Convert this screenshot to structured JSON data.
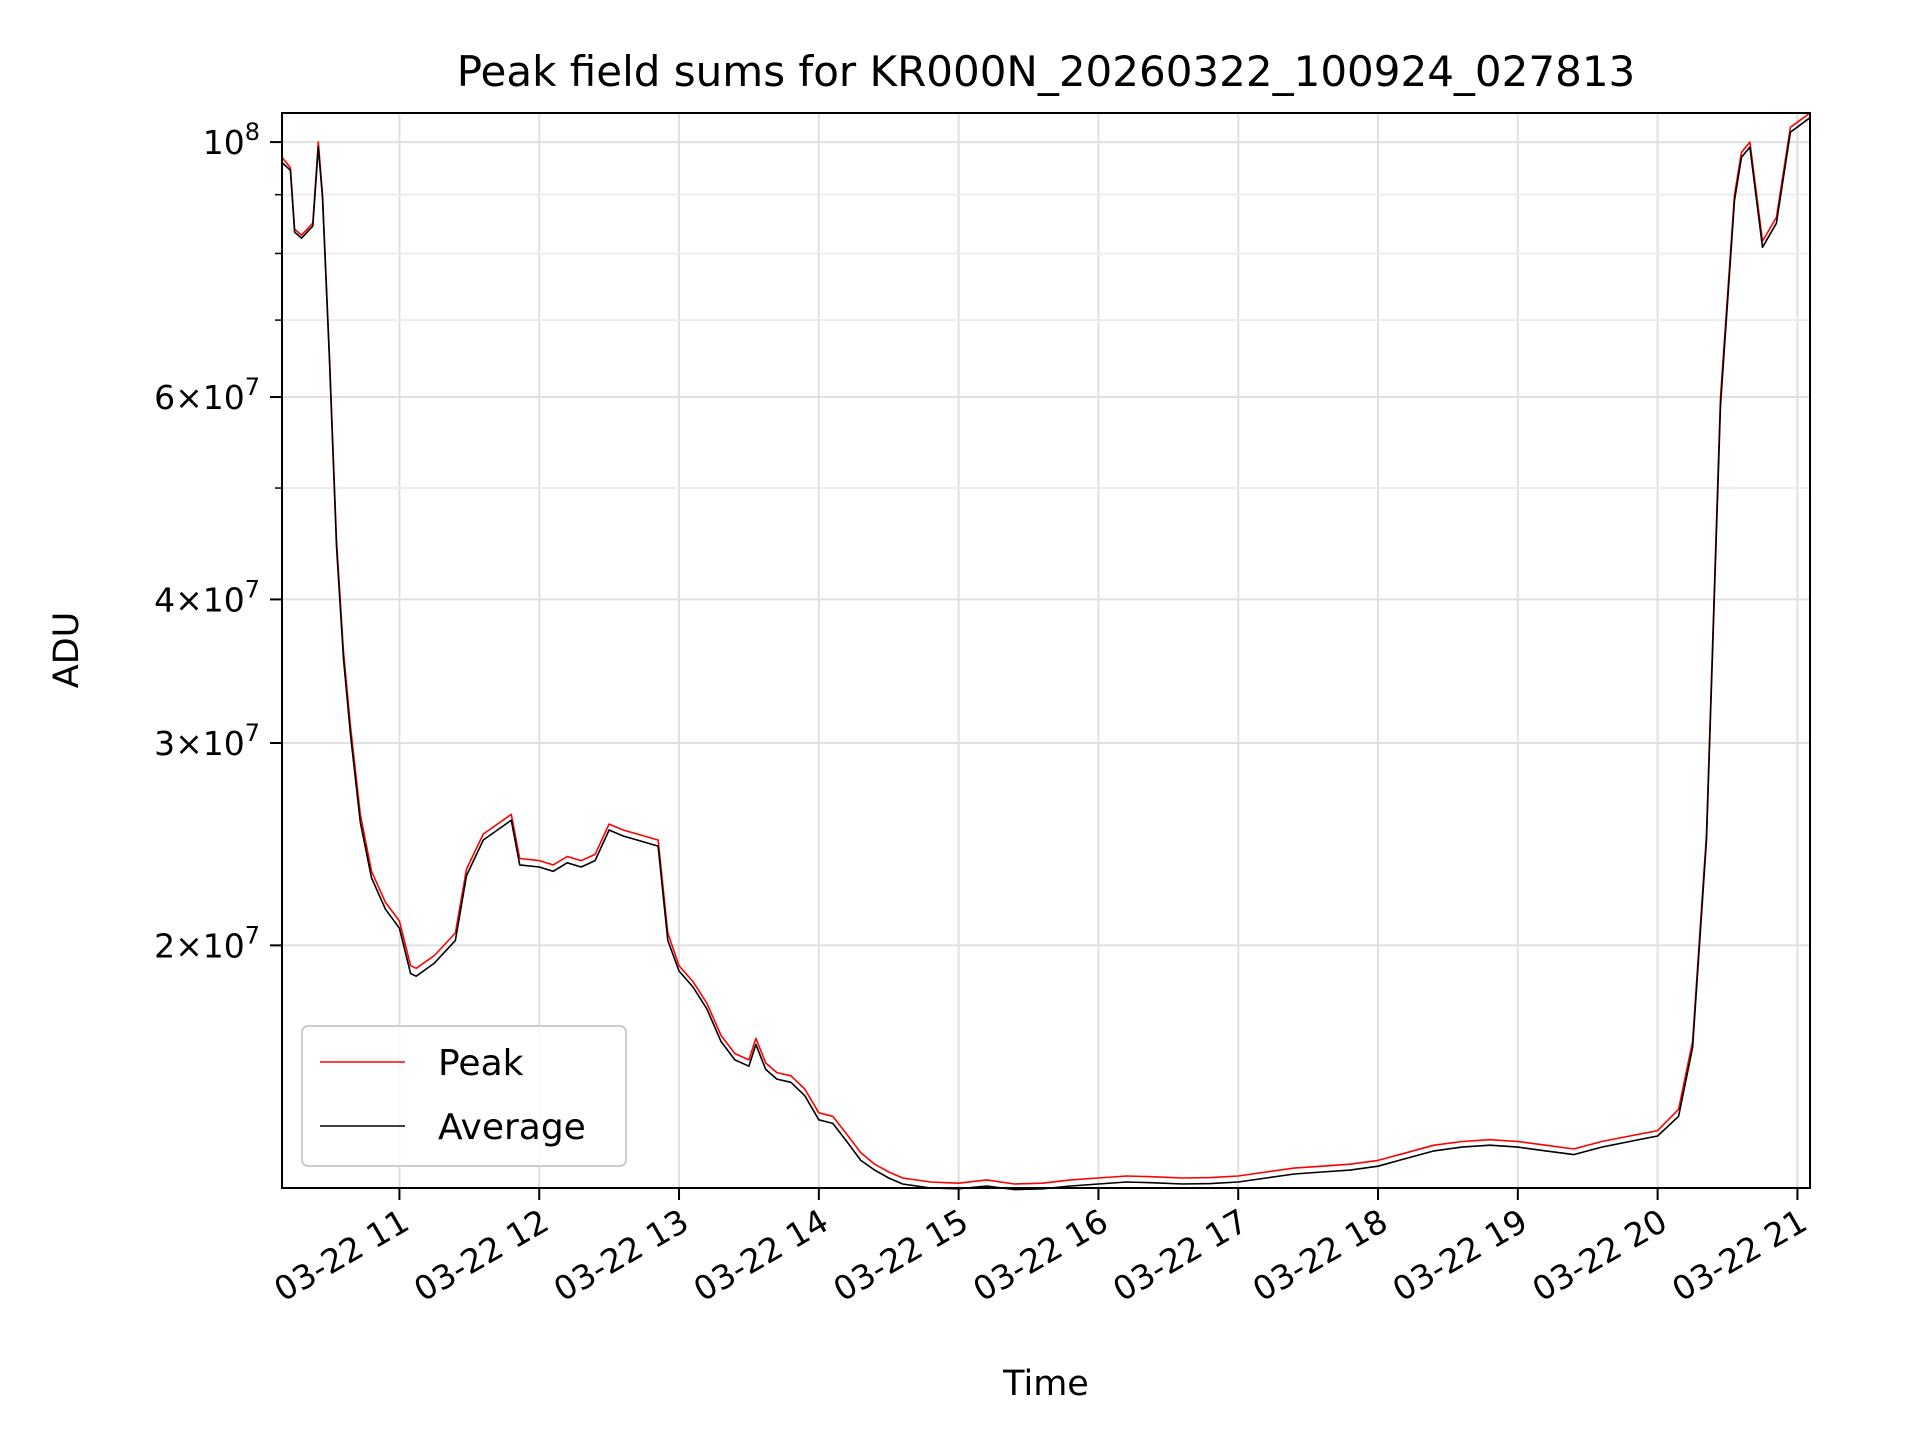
{
  "chart_data": {
    "type": "line",
    "title": "Peak field sums for KR000N_20260322_100924_027813",
    "xlabel": "Time",
    "ylabel": "ADU",
    "yscale": "log",
    "ylim": [
      12300000,
      106000000
    ],
    "xlim": [
      10.16,
      21.09
    ],
    "x_ticks": [
      {
        "value": 11,
        "label": "03-22 11"
      },
      {
        "value": 12,
        "label": "03-22 12"
      },
      {
        "value": 13,
        "label": "03-22 13"
      },
      {
        "value": 14,
        "label": "03-22 14"
      },
      {
        "value": 15,
        "label": "03-22 15"
      },
      {
        "value": 16,
        "label": "03-22 16"
      },
      {
        "value": 17,
        "label": "03-22 17"
      },
      {
        "value": 18,
        "label": "03-22 18"
      },
      {
        "value": 19,
        "label": "03-22 19"
      },
      {
        "value": 20,
        "label": "03-22 20"
      },
      {
        "value": 21,
        "label": "03-22 21"
      }
    ],
    "y_ticks": [
      {
        "value": 20000000,
        "mantissa": "2",
        "exponent": "7"
      },
      {
        "value": 30000000,
        "mantissa": "3",
        "exponent": "7"
      },
      {
        "value": 40000000,
        "mantissa": "4",
        "exponent": "7"
      },
      {
        "value": 60000000,
        "mantissa": "6",
        "exponent": "7"
      },
      {
        "value": 100000000,
        "mantissa": "",
        "exponent": "8"
      }
    ],
    "y_minor_ticks": [
      50000000,
      70000000,
      80000000,
      90000000
    ],
    "grid": true,
    "legend_position": "lower-left",
    "series": [
      {
        "name": "Peak",
        "color": "#ff0000",
        "x": [
          10.16,
          10.22,
          10.25,
          10.3,
          10.38,
          10.42,
          10.45,
          10.5,
          10.55,
          10.6,
          10.65,
          10.72,
          10.8,
          10.9,
          11.0,
          11.08,
          11.12,
          11.25,
          11.4,
          11.48,
          11.6,
          11.8,
          11.86,
          12.0,
          12.1,
          12.2,
          12.3,
          12.4,
          12.5,
          12.6,
          12.7,
          12.85,
          12.92,
          13.0,
          13.1,
          13.2,
          13.3,
          13.4,
          13.5,
          13.55,
          13.62,
          13.7,
          13.8,
          13.9,
          14.0,
          14.1,
          14.2,
          14.3,
          14.4,
          14.5,
          14.6,
          14.8,
          15.0,
          15.2,
          15.4,
          15.6,
          15.8,
          16.0,
          16.2,
          16.4,
          16.6,
          16.8,
          17.0,
          17.2,
          17.4,
          17.6,
          17.8,
          18.0,
          18.2,
          18.4,
          18.6,
          18.8,
          19.0,
          19.2,
          19.4,
          19.6,
          19.8,
          20.0,
          20.15,
          20.25,
          20.35,
          20.45,
          20.55,
          20.6,
          20.66,
          20.75,
          20.85,
          20.95,
          21.09
        ],
        "y": [
          97000000,
          95000000,
          84000000,
          83000000,
          85000000,
          100000000,
          90000000,
          65000000,
          45000000,
          36000000,
          31000000,
          26000000,
          23200000,
          21800000,
          21000000,
          19200000,
          19100000,
          19600000,
          20500000,
          23300000,
          25000000,
          26000000,
          23800000,
          23700000,
          23500000,
          23900000,
          23700000,
          24000000,
          25500000,
          25200000,
          25000000,
          24700000,
          20500000,
          19200000,
          18600000,
          17800000,
          16700000,
          16100000,
          15900000,
          16600000,
          15800000,
          15500000,
          15400000,
          15000000,
          14300000,
          14200000,
          13700000,
          13200000,
          12900000,
          12700000,
          12550000,
          12450000,
          12420000,
          12500000,
          12400000,
          12420000,
          12500000,
          12550000,
          12600000,
          12580000,
          12550000,
          12560000,
          12600000,
          12700000,
          12800000,
          12850000,
          12900000,
          13000000,
          13200000,
          13400000,
          13500000,
          13550000,
          13500000,
          13400000,
          13300000,
          13500000,
          13650000,
          13800000,
          14400000,
          16500000,
          25000000,
          60000000,
          90000000,
          98000000,
          100000000,
          82000000,
          86000000,
          103000000,
          106000000
        ]
      },
      {
        "name": "Average",
        "color": "#000000",
        "x": [
          10.16,
          10.22,
          10.25,
          10.3,
          10.38,
          10.42,
          10.45,
          10.5,
          10.55,
          10.6,
          10.65,
          10.72,
          10.8,
          10.9,
          11.0,
          11.08,
          11.12,
          11.25,
          11.4,
          11.48,
          11.6,
          11.8,
          11.86,
          12.0,
          12.1,
          12.2,
          12.3,
          12.4,
          12.5,
          12.6,
          12.7,
          12.85,
          12.92,
          13.0,
          13.1,
          13.2,
          13.3,
          13.4,
          13.5,
          13.55,
          13.62,
          13.7,
          13.8,
          13.9,
          14.0,
          14.1,
          14.2,
          14.3,
          14.4,
          14.5,
          14.6,
          14.8,
          15.0,
          15.2,
          15.4,
          15.6,
          15.8,
          16.0,
          16.2,
          16.4,
          16.6,
          16.8,
          17.0,
          17.2,
          17.4,
          17.6,
          17.8,
          18.0,
          18.2,
          18.4,
          18.6,
          18.8,
          19.0,
          19.2,
          19.4,
          19.6,
          19.8,
          20.0,
          20.15,
          20.25,
          20.35,
          20.45,
          20.55,
          20.6,
          20.66,
          20.75,
          20.85,
          20.95,
          21.09
        ],
        "y": [
          96000000,
          94500000,
          83500000,
          82500000,
          84500000,
          99000000,
          89500000,
          64500000,
          44500000,
          35500000,
          30500000,
          25600000,
          22900000,
          21500000,
          20700000,
          18900000,
          18800000,
          19300000,
          20200000,
          23000000,
          24700000,
          25700000,
          23500000,
          23400000,
          23200000,
          23600000,
          23400000,
          23700000,
          25200000,
          24900000,
          24700000,
          24400000,
          20200000,
          19000000,
          18400000,
          17600000,
          16500000,
          15900000,
          15700000,
          16400000,
          15600000,
          15300000,
          15200000,
          14800000,
          14100000,
          14000000,
          13500000,
          13000000,
          12750000,
          12550000,
          12400000,
          12300000,
          12280000,
          12350000,
          12260000,
          12280000,
          12350000,
          12400000,
          12450000,
          12430000,
          12400000,
          12410000,
          12450000,
          12550000,
          12650000,
          12700000,
          12750000,
          12850000,
          13050000,
          13250000,
          13350000,
          13400000,
          13350000,
          13250000,
          13150000,
          13350000,
          13500000,
          13650000,
          14200000,
          16300000,
          24700000,
          59000000,
          89000000,
          97000000,
          99000000,
          81000000,
          85000000,
          102000000,
          105000000
        ]
      }
    ]
  }
}
